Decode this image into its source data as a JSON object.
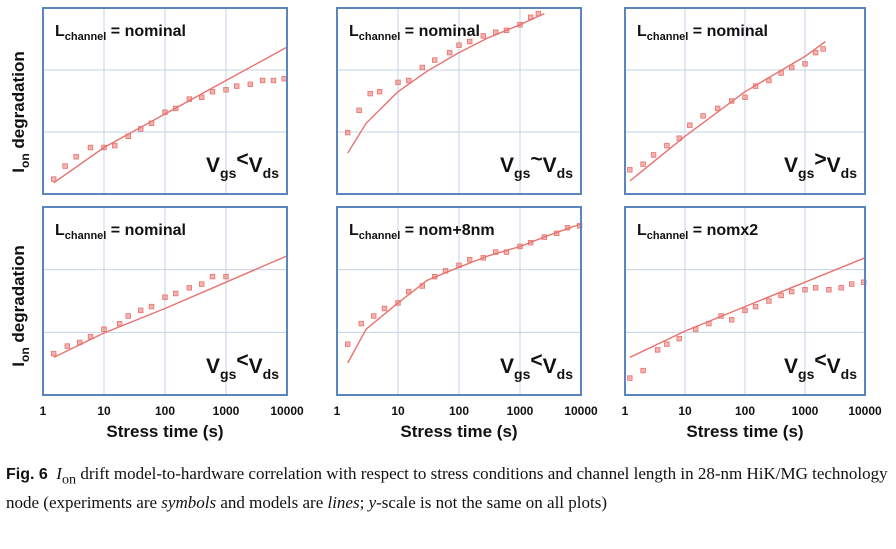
{
  "figure": {
    "ylabel": "I_on degradation",
    "xlabel": "Stress time (s)",
    "x_ticks": [
      "1",
      "10",
      "100",
      "1000",
      "10000"
    ]
  },
  "caption": {
    "label": "Fig. 6",
    "part1": " drift model-to-hardware correlation with respect to stress conditions and channel length in 28-nm HiK/MG technology node (experiments are ",
    "term1": "symbols",
    "part2": " and models are ",
    "term2": "lines",
    "part3": "; ",
    "term3": "y",
    "part4": "-scale is not the same on all plots)",
    "i_main": "I",
    "i_sub": "on"
  },
  "colors": {
    "frame": "#5b86bd",
    "grid": "#c5d3e6",
    "data": "#e8736f"
  },
  "chart_data": [
    {
      "type": "scatter",
      "panel": "top-left",
      "channel": "nominal",
      "condition": "gs<ds",
      "xscale": "log",
      "xlim": [
        1,
        10000
      ],
      "ylim": [
        0,
        1
      ],
      "grid": true,
      "symbols": {
        "x": [
          1.5,
          2.3,
          3.5,
          6,
          10,
          15,
          25,
          40,
          60,
          100,
          150,
          250,
          400,
          600,
          1000,
          1500,
          2500,
          4000,
          6000,
          9000
        ],
        "y": [
          0.08,
          0.15,
          0.2,
          0.25,
          0.25,
          0.26,
          0.31,
          0.35,
          0.38,
          0.44,
          0.46,
          0.51,
          0.52,
          0.55,
          0.56,
          0.58,
          0.59,
          0.61,
          0.61,
          0.62
        ]
      },
      "model": {
        "x": [
          1.5,
          10,
          100,
          1000,
          10000
        ],
        "y": [
          0.06,
          0.25,
          0.43,
          0.61,
          0.79
        ]
      }
    },
    {
      "type": "scatter",
      "panel": "top-center",
      "channel": "nominal",
      "condition": "gs~ds",
      "xscale": "log",
      "xlim": [
        1,
        10000
      ],
      "ylim": [
        0,
        1
      ],
      "grid": true,
      "symbols": {
        "x": [
          1.5,
          2.3,
          3.5,
          5,
          10,
          15,
          25,
          40,
          70,
          100,
          150,
          250,
          400,
          600,
          1000,
          1500,
          2000
        ],
        "y": [
          0.33,
          0.45,
          0.54,
          0.55,
          0.6,
          0.61,
          0.68,
          0.72,
          0.76,
          0.8,
          0.82,
          0.85,
          0.87,
          0.88,
          0.91,
          0.95,
          0.97
        ]
      },
      "model": {
        "x": [
          1.5,
          3,
          10,
          30,
          100,
          300,
          1000,
          2500
        ],
        "y": [
          0.22,
          0.38,
          0.55,
          0.66,
          0.76,
          0.84,
          0.91,
          0.97
        ]
      }
    },
    {
      "type": "scatter",
      "panel": "top-right",
      "channel": "nominal",
      "condition": "gs>ds",
      "xscale": "log",
      "xlim": [
        1,
        10000
      ],
      "ylim": [
        0,
        1
      ],
      "grid": true,
      "symbols": {
        "x": [
          1.2,
          2,
          3,
          5,
          8,
          12,
          20,
          35,
          60,
          100,
          150,
          250,
          400,
          600,
          1000,
          1500,
          2000
        ],
        "y": [
          0.13,
          0.16,
          0.21,
          0.26,
          0.3,
          0.37,
          0.42,
          0.46,
          0.5,
          0.52,
          0.58,
          0.61,
          0.65,
          0.68,
          0.7,
          0.76,
          0.78
        ]
      },
      "model": {
        "x": [
          1.2,
          10,
          100,
          1000,
          2200
        ],
        "y": [
          0.07,
          0.31,
          0.55,
          0.74,
          0.82
        ]
      }
    },
    {
      "type": "scatter",
      "panel": "bottom-left",
      "channel": "nominal",
      "condition": "gs<ds",
      "xscale": "log",
      "xlim": [
        1,
        10000
      ],
      "ylim": [
        0,
        1
      ],
      "grid": true,
      "symbols": {
        "x": [
          1.5,
          2.5,
          4,
          6,
          10,
          18,
          25,
          40,
          60,
          100,
          150,
          250,
          400,
          600,
          1000
        ],
        "y": [
          0.22,
          0.26,
          0.28,
          0.31,
          0.35,
          0.38,
          0.42,
          0.45,
          0.47,
          0.52,
          0.54,
          0.57,
          0.59,
          0.63,
          0.63
        ]
      },
      "model": {
        "x": [
          1.5,
          10,
          100,
          1000,
          10000
        ],
        "y": [
          0.2,
          0.33,
          0.46,
          0.6,
          0.74
        ]
      }
    },
    {
      "type": "scatter",
      "panel": "bottom-center",
      "channel": "nom+8nm",
      "condition": "gs<ds",
      "xscale": "log",
      "xlim": [
        1,
        10000
      ],
      "ylim": [
        0,
        1
      ],
      "grid": true,
      "symbols": {
        "x": [
          1.5,
          2.5,
          4,
          6,
          10,
          15,
          25,
          40,
          60,
          100,
          150,
          250,
          400,
          600,
          1000,
          1500,
          2500,
          4000,
          6000,
          9500
        ],
        "y": [
          0.27,
          0.38,
          0.42,
          0.46,
          0.49,
          0.55,
          0.58,
          0.63,
          0.66,
          0.69,
          0.72,
          0.73,
          0.76,
          0.76,
          0.79,
          0.81,
          0.84,
          0.86,
          0.89,
          0.9
        ]
      },
      "model": {
        "x": [
          1.5,
          3,
          10,
          30,
          100,
          300,
          1000,
          3000,
          10000
        ],
        "y": [
          0.17,
          0.35,
          0.49,
          0.61,
          0.68,
          0.74,
          0.79,
          0.85,
          0.91
        ]
      }
    },
    {
      "type": "scatter",
      "panel": "bottom-right",
      "channel": "nomx2",
      "condition": "gs<ds",
      "xscale": "log",
      "xlim": [
        1,
        10000
      ],
      "ylim": [
        0,
        1
      ],
      "grid": true,
      "symbols": {
        "x": [
          1.2,
          2,
          3.5,
          5,
          8,
          15,
          25,
          40,
          60,
          100,
          150,
          250,
          400,
          600,
          1000,
          1500,
          2500,
          4000,
          6000,
          9500
        ],
        "y": [
          0.09,
          0.13,
          0.24,
          0.27,
          0.3,
          0.35,
          0.38,
          0.42,
          0.4,
          0.45,
          0.47,
          0.5,
          0.53,
          0.55,
          0.56,
          0.57,
          0.56,
          0.57,
          0.59,
          0.6
        ]
      },
      "model": {
        "x": [
          1.2,
          10,
          100,
          1000,
          10000
        ],
        "y": [
          0.2,
          0.34,
          0.47,
          0.6,
          0.73
        ]
      }
    }
  ]
}
